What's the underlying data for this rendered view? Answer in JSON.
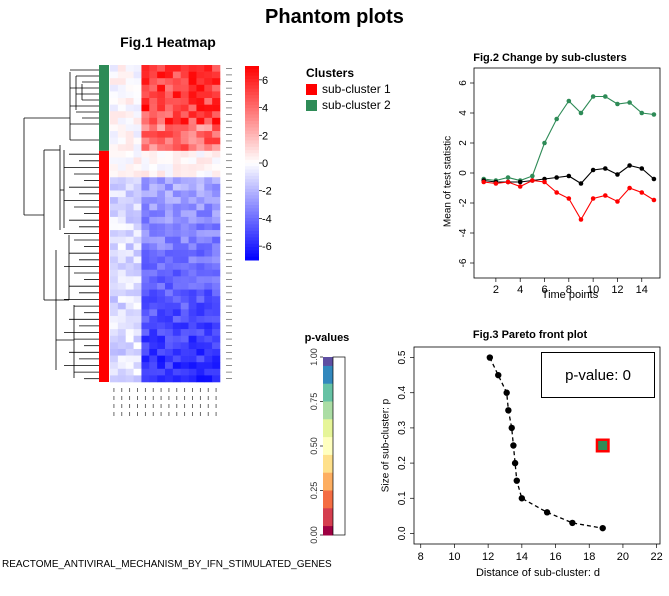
{
  "page": {
    "main_title": "Phantom plots",
    "gene_set_label": "REACTOME_ANTIVIRAL_MECHANISM_BY_IFN_STIMULATED_GENES"
  },
  "colors": {
    "subcluster1": "#ff0000",
    "subcluster2": "#2e8b57",
    "overall": "#000000",
    "heat_low": "#0000ff",
    "heat_mid": "#ffffff",
    "heat_high": "#ff0000"
  },
  "legend": {
    "title": "Clusters",
    "items": [
      "sub-cluster 1",
      "sub-cluster 2"
    ]
  },
  "chart_data": [
    {
      "id": "fig1",
      "type": "heatmap",
      "title": "Fig.1 Heatmap",
      "rows": 48,
      "cols": 14,
      "row_cluster_bar": {
        "sub-cluster 2": 13,
        "sub-cluster 1": 35
      },
      "colorbar_ticks": [
        6,
        4,
        2,
        0,
        -2,
        -4,
        -6
      ],
      "colorbar_range": [
        -7,
        7
      ]
    },
    {
      "id": "fig2",
      "type": "line",
      "title": "Fig.2 Change by sub-clusters",
      "xlabel": "Time points",
      "ylabel": "Mean of test statistic",
      "x": [
        1,
        2,
        3,
        4,
        5,
        6,
        7,
        8,
        9,
        10,
        11,
        12,
        13,
        14,
        15
      ],
      "xticks": [
        2,
        4,
        6,
        8,
        10,
        12,
        14
      ],
      "yticks": [
        -6,
        -4,
        -2,
        0,
        2,
        4,
        6
      ],
      "xlim": [
        0.2,
        15.5
      ],
      "ylim": [
        -7,
        7
      ],
      "series": [
        {
          "name": "sub-cluster 2",
          "color": "#2e8b57",
          "values": [
            -0.4,
            -0.5,
            -0.3,
            -0.5,
            -0.2,
            2.0,
            3.6,
            4.8,
            4.0,
            5.1,
            5.1,
            4.6,
            4.7,
            4.0,
            3.9
          ]
        },
        {
          "name": "",
          "color": "#000000",
          "values": [
            -0.5,
            -0.6,
            -0.6,
            -0.6,
            -0.5,
            -0.4,
            -0.3,
            -0.2,
            -0.7,
            0.2,
            0.3,
            -0.1,
            0.5,
            0.3,
            -0.4
          ]
        },
        {
          "name": "sub-cluster 1",
          "color": "#ff0000",
          "values": [
            -0.6,
            -0.7,
            -0.6,
            -0.9,
            -0.5,
            -0.6,
            -1.3,
            -1.7,
            -3.1,
            -1.7,
            -1.5,
            -1.9,
            -1.0,
            -1.3,
            -1.8
          ]
        }
      ]
    },
    {
      "id": "fig3",
      "type": "scatter",
      "title": "Fig.3 Pareto front plot",
      "xlabel": "Distance of sub-cluster: d",
      "ylabel": "Size of sub-cluster: p",
      "xticks": [
        8,
        10,
        12,
        14,
        16,
        18,
        20,
        22
      ],
      "yticks": [
        0.0,
        0.1,
        0.2,
        0.3,
        0.4,
        0.5
      ],
      "xlim": [
        7.6,
        22.2
      ],
      "ylim": [
        -0.03,
        0.53
      ],
      "annotation": "p-value: 0",
      "front": [
        [
          12.1,
          0.5
        ],
        [
          12.6,
          0.45
        ],
        [
          13.1,
          0.4
        ],
        [
          13.2,
          0.35
        ],
        [
          13.4,
          0.3
        ],
        [
          13.5,
          0.25
        ],
        [
          13.6,
          0.2
        ],
        [
          13.7,
          0.15
        ],
        [
          14.0,
          0.1
        ],
        [
          15.5,
          0.06
        ],
        [
          17.0,
          0.03
        ],
        [
          18.8,
          0.015
        ]
      ],
      "highlight": {
        "x": 18.8,
        "y": 0.25,
        "color": "#2e8b57",
        "border": "#ff0000"
      }
    },
    {
      "id": "pvalue-colorbar",
      "type": "heatmap",
      "title": "p-values",
      "ticks": [
        "0.00",
        "0.25",
        "0.50",
        "0.75",
        "1.00"
      ],
      "range": [
        0,
        1
      ]
    }
  ]
}
